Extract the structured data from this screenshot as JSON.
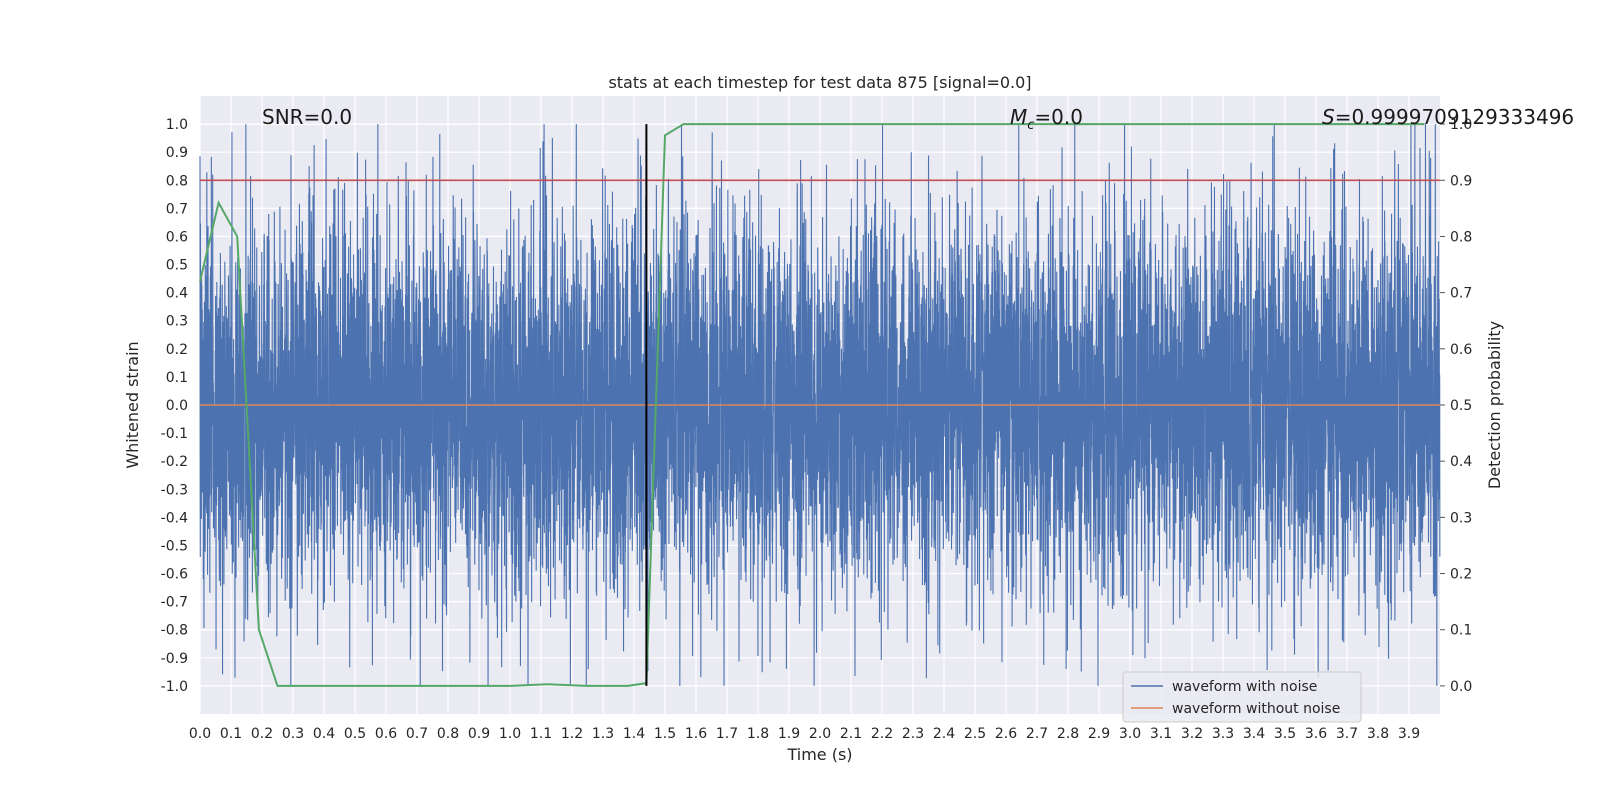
{
  "chart_data": {
    "type": "line",
    "title": "stats at each timestep for test data 875 [signal=0.0]",
    "xlabel": "Time (s)",
    "ylabel": "Whitened strain",
    "y2label": "Detection probability",
    "xlim": [
      0.0,
      4.0
    ],
    "ylim": [
      -1.1,
      1.1
    ],
    "y2lim": [
      -0.05,
      1.05
    ],
    "x_ticks": [
      0.0,
      0.1,
      0.2,
      0.3,
      0.4,
      0.5,
      0.6,
      0.7,
      0.8,
      0.9,
      1.0,
      1.1,
      1.2,
      1.3,
      1.4,
      1.5,
      1.6,
      1.7,
      1.8,
      1.9,
      2.0,
      2.1,
      2.2,
      2.3,
      2.4,
      2.5,
      2.6,
      2.7,
      2.8,
      2.9,
      3.0,
      3.1,
      3.2,
      3.3,
      3.4,
      3.5,
      3.6,
      3.7,
      3.8,
      3.9
    ],
    "y_ticks": [
      1.0,
      0.9,
      0.8,
      0.7,
      0.6,
      0.5,
      0.4,
      0.3,
      0.2,
      0.1,
      0.0,
      -0.1,
      -0.2,
      -0.3,
      -0.4,
      -0.5,
      -0.6,
      -0.7,
      -0.8,
      -0.9,
      -1.0
    ],
    "y2_ticks": [
      1.0,
      0.9,
      0.8,
      0.7,
      0.6,
      0.5,
      0.4,
      0.3,
      0.2,
      0.1,
      0.0
    ],
    "grid": true,
    "legend_placement": "lower-right",
    "annotations": {
      "snr": "SNR=0.0",
      "mc_symbol": "M",
      "mc_sub": "c",
      "mc_value": "=0.0",
      "s_symbol": "S",
      "s_value": "=0.9999709129333496"
    },
    "series": [
      {
        "name": "waveform with noise",
        "color": "#4c72b0",
        "axis": "left",
        "kind": "noise",
        "sample_rate_hz": 2048,
        "duration_s": 4.0,
        "amplitude_range": [
          -1.0,
          1.0
        ]
      },
      {
        "name": "waveform without noise",
        "color": "#dd8452",
        "axis": "left",
        "x": [
          0.0,
          4.0
        ],
        "values": [
          0.0,
          0.0
        ]
      },
      {
        "name": "Detection probability",
        "color": "#55a868",
        "axis": "right",
        "x": [
          0.0,
          0.06,
          0.12,
          0.19,
          0.25,
          0.31,
          0.5,
          0.8,
          1.0,
          1.12,
          1.25,
          1.38,
          1.44,
          1.5,
          1.56,
          2.0,
          3.0,
          3.95
        ],
        "values": [
          0.72,
          0.86,
          0.8,
          0.1,
          0.0,
          0.0,
          0.0,
          0.0,
          0.0,
          0.003,
          0.0,
          0.0,
          0.005,
          0.98,
          1.0,
          1.0,
          1.0,
          1.0
        ]
      }
    ],
    "threshold_line": {
      "axis": "right",
      "value": 0.9,
      "color": "#c44e52"
    },
    "marker_line": {
      "x": 1.44,
      "axis_range": [
        0.0,
        1.0
      ],
      "color": "#000000"
    }
  }
}
